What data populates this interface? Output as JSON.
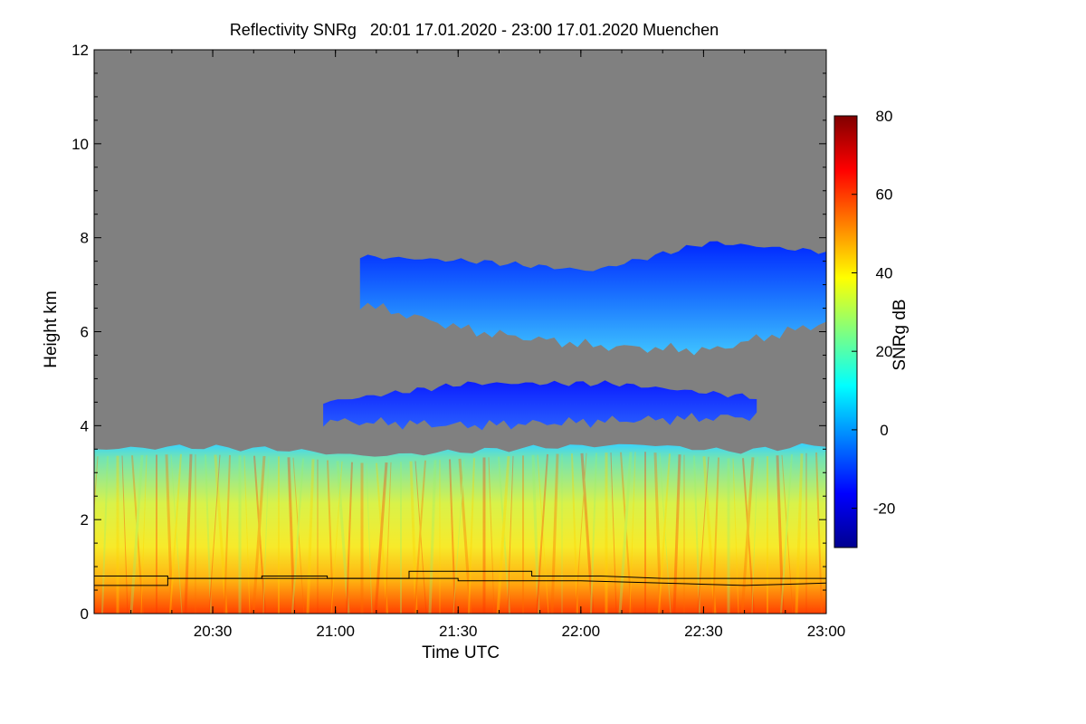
{
  "chart_data": {
    "type": "heatmap",
    "title": "Reflectivity SNRg   20:01 17.01.2020 - 23:00 17.01.2020 Muenchen",
    "xlabel": "Time UTC",
    "ylabel": "Height km",
    "x_range": [
      "20:01",
      "23:00"
    ],
    "x_ticks": [
      "20:30",
      "21:00",
      "21:30",
      "22:00",
      "22:30",
      "23:00"
    ],
    "ylim": [
      0,
      12
    ],
    "y_ticks": [
      0,
      2,
      4,
      6,
      8,
      10,
      12
    ],
    "colorbar": {
      "label": "SNRg dB",
      "range": [
        -30,
        80
      ],
      "ticks": [
        -20,
        0,
        20,
        40,
        60,
        80
      ],
      "colormap": "jet"
    },
    "background_color": "#808080",
    "layers": [
      {
        "name": "boundary layer",
        "t_start": "20:01",
        "t_end": "23:00",
        "top_km": [
          3.5,
          3.55,
          3.5,
          3.35,
          3.45,
          3.55,
          3.6,
          3.45,
          3.6
        ],
        "snr_db": [
          20,
          50
        ]
      },
      {
        "name": "mid-level cloud",
        "t_start": "20:57",
        "t_end": "22:43",
        "top_km": [
          4.5,
          4.9,
          4.9,
          4.6
        ],
        "base_km": [
          4.1,
          4.0,
          4.1,
          4.2
        ],
        "snr_db": [
          -20,
          0
        ]
      },
      {
        "name": "upper cloud",
        "t_start": "21:06",
        "t_end": "23:00",
        "top_km": [
          7.6,
          7.5,
          7.3,
          7.9,
          7.7
        ],
        "base_km": [
          6.6,
          6.0,
          5.7,
          5.6,
          6.2
        ],
        "snr_db": [
          -25,
          10
        ]
      }
    ],
    "mixing_layer_lines": [
      {
        "t": [
          "20:01",
          "20:19",
          "20:19",
          "20:42",
          "20:42",
          "20:58",
          "20:58",
          "21:18",
          "21:18",
          "21:48",
          "21:48",
          "22:05",
          "22:20",
          "22:40",
          "23:00"
        ],
        "h_km": [
          0.8,
          0.8,
          0.75,
          0.75,
          0.8,
          0.8,
          0.75,
          0.75,
          0.9,
          0.9,
          0.8,
          0.8,
          0.75,
          0.75,
          0.75
        ]
      },
      {
        "t": [
          "20:01",
          "20:19",
          "20:19",
          "21:30",
          "21:30",
          "22:00",
          "22:20",
          "22:40",
          "23:00"
        ],
        "h_km": [
          0.6,
          0.6,
          0.75,
          0.75,
          0.7,
          0.7,
          0.65,
          0.6,
          0.65
        ]
      }
    ]
  }
}
